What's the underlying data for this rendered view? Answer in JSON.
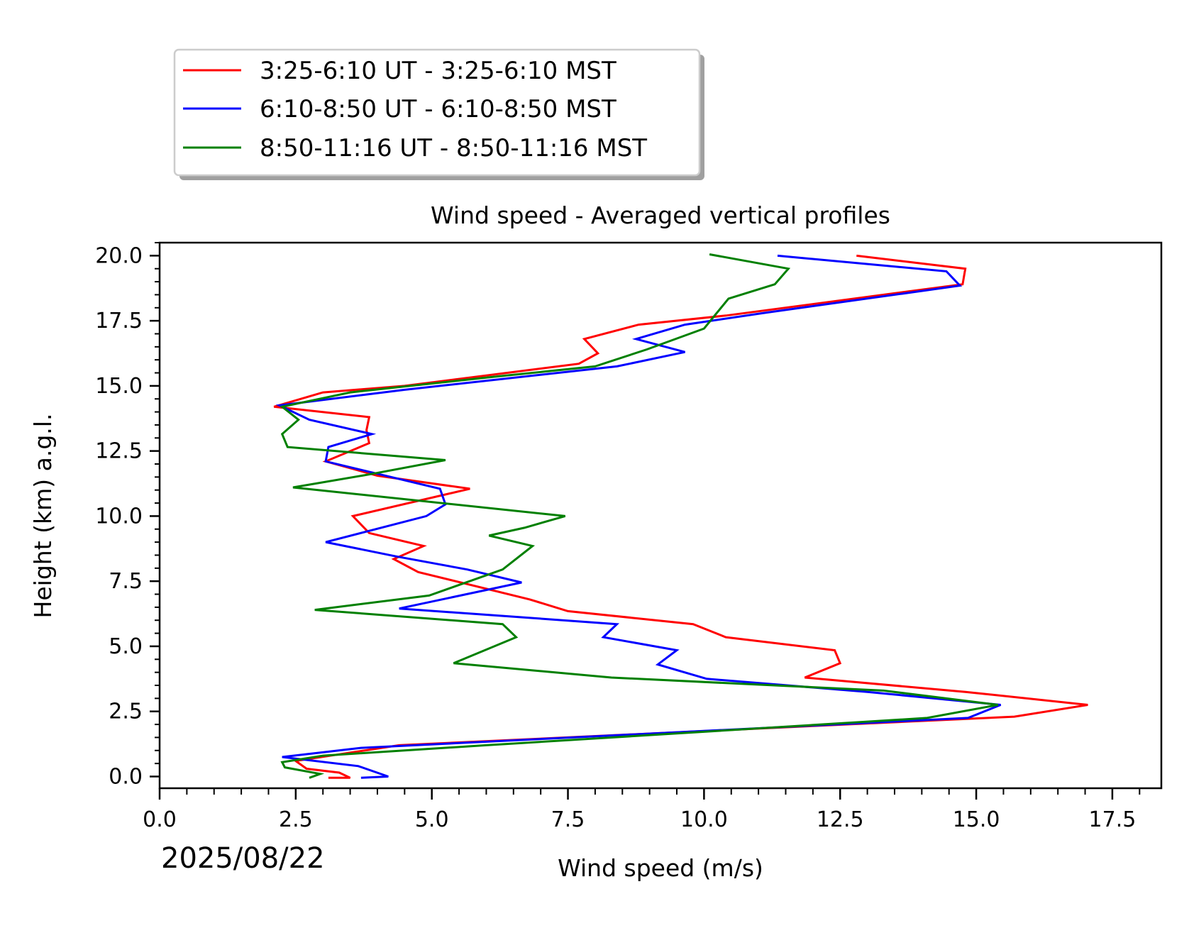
{
  "chart_data": {
    "type": "line",
    "title": "Wind speed - Averaged vertical profiles",
    "xlabel": "Wind speed (m/s)",
    "ylabel": "Height (km) a.g.l.",
    "date_label": "2025/08/22",
    "xlim": [
      0,
      18.4
    ],
    "ylim": [
      -0.45,
      20.5
    ],
    "x_ticks": [
      0.0,
      2.5,
      5.0,
      7.5,
      10.0,
      12.5,
      15.0,
      17.5
    ],
    "x_tick_labels": [
      "0.0",
      "2.5",
      "5.0",
      "7.5",
      "10.0",
      "12.5",
      "15.0",
      "17.5"
    ],
    "y_ticks": [
      0.0,
      2.5,
      5.0,
      7.5,
      10.0,
      12.5,
      15.0,
      17.5,
      20.0
    ],
    "y_tick_labels": [
      "0.0",
      "2.5",
      "5.0",
      "7.5",
      "10.0",
      "12.5",
      "15.0",
      "17.5",
      "20.0"
    ],
    "x_minor_step": 0.5,
    "y_minor_step": 0.5,
    "legend_position": "above-left, outside plot",
    "series": [
      {
        "name": "3:25-6:10 UT - 3:25-6:10 MST",
        "color": "#ff0000",
        "points": [
          [
            3.1,
            -0.05
          ],
          [
            3.5,
            -0.05
          ],
          [
            3.3,
            0.15
          ],
          [
            2.7,
            0.3
          ],
          [
            2.5,
            0.6
          ],
          [
            4.4,
            1.2
          ],
          [
            15.7,
            2.3
          ],
          [
            17.05,
            2.75
          ],
          [
            14.8,
            3.25
          ],
          [
            11.85,
            3.8
          ],
          [
            12.5,
            4.35
          ],
          [
            12.4,
            4.85
          ],
          [
            10.4,
            5.35
          ],
          [
            9.8,
            5.85
          ],
          [
            7.5,
            6.35
          ],
          [
            6.8,
            6.8
          ],
          [
            4.75,
            7.85
          ],
          [
            4.3,
            8.35
          ],
          [
            4.85,
            8.85
          ],
          [
            3.85,
            9.35
          ],
          [
            3.55,
            10.0
          ],
          [
            5.7,
            11.05
          ],
          [
            4.0,
            11.55
          ],
          [
            3.05,
            12.1
          ],
          [
            3.85,
            12.8
          ],
          [
            3.8,
            13.3
          ],
          [
            3.85,
            13.8
          ],
          [
            2.1,
            14.2
          ],
          [
            3.0,
            14.75
          ],
          [
            4.5,
            15.0
          ],
          [
            7.7,
            15.85
          ],
          [
            8.05,
            16.25
          ],
          [
            7.8,
            16.8
          ],
          [
            8.8,
            17.35
          ],
          [
            10.4,
            17.7
          ],
          [
            14.75,
            18.9
          ],
          [
            14.8,
            19.5
          ],
          [
            12.8,
            20.0
          ]
        ]
      },
      {
        "name": "6:10-8:50 UT - 6:10-8:50 MST",
        "color": "#0000ff",
        "points": [
          [
            3.7,
            -0.05
          ],
          [
            4.2,
            0.0
          ],
          [
            3.65,
            0.4
          ],
          [
            2.25,
            0.75
          ],
          [
            3.7,
            1.1
          ],
          [
            14.85,
            2.25
          ],
          [
            15.45,
            2.75
          ],
          [
            13.0,
            3.25
          ],
          [
            10.05,
            3.75
          ],
          [
            9.15,
            4.3
          ],
          [
            9.5,
            4.85
          ],
          [
            8.15,
            5.35
          ],
          [
            8.4,
            5.85
          ],
          [
            4.4,
            6.45
          ],
          [
            6.65,
            7.45
          ],
          [
            5.65,
            7.95
          ],
          [
            4.35,
            8.45
          ],
          [
            3.05,
            9.0
          ],
          [
            4.9,
            10.0
          ],
          [
            5.25,
            10.45
          ],
          [
            5.15,
            11.05
          ],
          [
            3.05,
            12.1
          ],
          [
            3.1,
            12.65
          ],
          [
            3.9,
            13.15
          ],
          [
            2.75,
            13.7
          ],
          [
            2.2,
            14.25
          ],
          [
            4.5,
            14.85
          ],
          [
            8.4,
            15.75
          ],
          [
            9.65,
            16.3
          ],
          [
            8.75,
            16.8
          ],
          [
            9.65,
            17.35
          ],
          [
            11.1,
            17.8
          ],
          [
            14.7,
            18.85
          ],
          [
            14.45,
            19.4
          ],
          [
            11.35,
            20.0
          ]
        ]
      },
      {
        "name": "8:50-11:16 UT - 8:50-11:16 MST",
        "color": "#008000",
        "points": [
          [
            2.75,
            -0.05
          ],
          [
            2.95,
            0.1
          ],
          [
            2.3,
            0.35
          ],
          [
            2.25,
            0.55
          ],
          [
            3.0,
            0.8
          ],
          [
            6.0,
            1.2
          ],
          [
            14.1,
            2.25
          ],
          [
            15.4,
            2.75
          ],
          [
            13.3,
            3.3
          ],
          [
            8.3,
            3.8
          ],
          [
            5.4,
            4.35
          ],
          [
            6.55,
            5.35
          ],
          [
            6.3,
            5.85
          ],
          [
            2.85,
            6.4
          ],
          [
            4.95,
            6.95
          ],
          [
            6.3,
            7.95
          ],
          [
            6.85,
            8.85
          ],
          [
            6.05,
            9.25
          ],
          [
            6.7,
            9.55
          ],
          [
            7.45,
            10.0
          ],
          [
            2.45,
            11.1
          ],
          [
            3.85,
            11.6
          ],
          [
            5.25,
            12.15
          ],
          [
            2.35,
            12.65
          ],
          [
            2.25,
            13.15
          ],
          [
            2.55,
            13.7
          ],
          [
            2.25,
            14.2
          ],
          [
            3.5,
            14.75
          ],
          [
            6.15,
            15.35
          ],
          [
            8.0,
            15.75
          ],
          [
            8.95,
            16.4
          ],
          [
            10.0,
            17.2
          ],
          [
            10.45,
            18.35
          ],
          [
            11.3,
            18.9
          ],
          [
            11.55,
            19.5
          ],
          [
            10.1,
            20.05
          ]
        ]
      }
    ]
  }
}
